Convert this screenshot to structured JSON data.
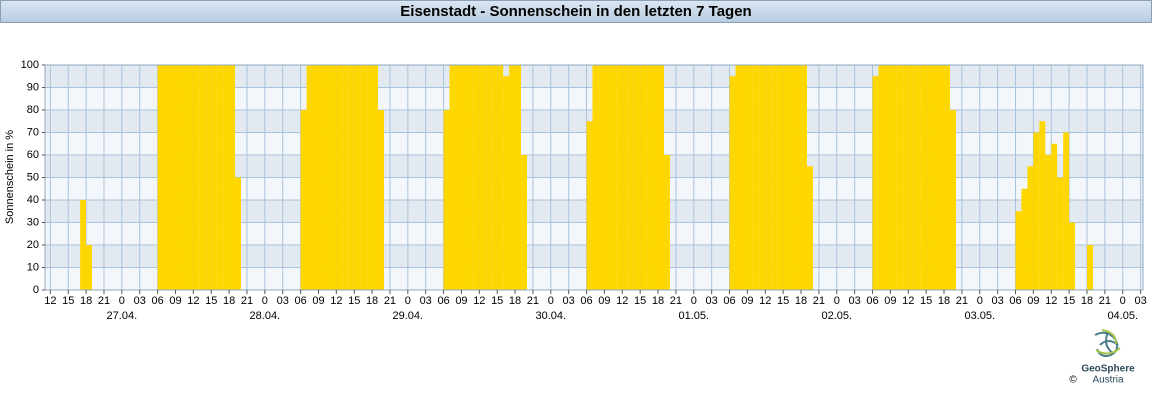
{
  "chart_data": {
    "type": "bar",
    "title": "Eisenstadt - Sonnenschein in den letzten 7 Tagen",
    "ylabel": "Sonnenschein in %",
    "color": "#ffd700",
    "grid": true,
    "ylim": [
      0,
      100
    ],
    "yticks": [
      0,
      10,
      20,
      30,
      40,
      50,
      60,
      70,
      80,
      90,
      100
    ],
    "xlim": [
      11.1,
      195.4
    ],
    "xticks": [
      {
        "value": 12,
        "label": "12"
      },
      {
        "value": 15,
        "label": "15"
      },
      {
        "value": 18,
        "label": "18"
      },
      {
        "value": 21,
        "label": "21"
      },
      {
        "value": 24,
        "label": "0"
      },
      {
        "value": 27,
        "label": "03"
      },
      {
        "value": 30,
        "label": "06"
      },
      {
        "value": 33,
        "label": "09"
      },
      {
        "value": 36,
        "label": "12"
      },
      {
        "value": 39,
        "label": "15"
      },
      {
        "value": 42,
        "label": "18"
      },
      {
        "value": 45,
        "label": "21"
      },
      {
        "value": 48,
        "label": "0"
      },
      {
        "value": 51,
        "label": "03"
      },
      {
        "value": 54,
        "label": "06"
      },
      {
        "value": 57,
        "label": "09"
      },
      {
        "value": 60,
        "label": "12"
      },
      {
        "value": 63,
        "label": "15"
      },
      {
        "value": 66,
        "label": "18"
      },
      {
        "value": 69,
        "label": "21"
      },
      {
        "value": 72,
        "label": "0"
      },
      {
        "value": 75,
        "label": "03"
      },
      {
        "value": 78,
        "label": "06"
      },
      {
        "value": 81,
        "label": "09"
      },
      {
        "value": 84,
        "label": "12"
      },
      {
        "value": 87,
        "label": "15"
      },
      {
        "value": 90,
        "label": "18"
      },
      {
        "value": 93,
        "label": "21"
      },
      {
        "value": 96,
        "label": "0"
      },
      {
        "value": 99,
        "label": "03"
      },
      {
        "value": 102,
        "label": "06"
      },
      {
        "value": 105,
        "label": "09"
      },
      {
        "value": 108,
        "label": "12"
      },
      {
        "value": 111,
        "label": "15"
      },
      {
        "value": 114,
        "label": "18"
      },
      {
        "value": 117,
        "label": "21"
      },
      {
        "value": 120,
        "label": "0"
      },
      {
        "value": 123,
        "label": "03"
      },
      {
        "value": 126,
        "label": "06"
      },
      {
        "value": 129,
        "label": "09"
      },
      {
        "value": 132,
        "label": "12"
      },
      {
        "value": 135,
        "label": "15"
      },
      {
        "value": 138,
        "label": "18"
      },
      {
        "value": 141,
        "label": "21"
      },
      {
        "value": 144,
        "label": "0"
      },
      {
        "value": 147,
        "label": "03"
      },
      {
        "value": 150,
        "label": "06"
      },
      {
        "value": 153,
        "label": "09"
      },
      {
        "value": 156,
        "label": "12"
      },
      {
        "value": 159,
        "label": "15"
      },
      {
        "value": 162,
        "label": "18"
      },
      {
        "value": 165,
        "label": "21"
      },
      {
        "value": 168,
        "label": "0"
      },
      {
        "value": 171,
        "label": "03"
      },
      {
        "value": 174,
        "label": "06"
      },
      {
        "value": 177,
        "label": "09"
      },
      {
        "value": 180,
        "label": "12"
      },
      {
        "value": 183,
        "label": "15"
      },
      {
        "value": 186,
        "label": "18"
      },
      {
        "value": 189,
        "label": "21"
      },
      {
        "value": 192,
        "label": "0"
      },
      {
        "value": 195,
        "label": "03"
      }
    ],
    "xdate_labels": [
      {
        "value": 24,
        "label": "27.04."
      },
      {
        "value": 48,
        "label": "28.04."
      },
      {
        "value": 72,
        "label": "29.04."
      },
      {
        "value": 96,
        "label": "30.04."
      },
      {
        "value": 120,
        "label": "01.05."
      },
      {
        "value": 144,
        "label": "02.05."
      },
      {
        "value": 168,
        "label": "03.05."
      },
      {
        "value": 192,
        "label": "04.05."
      }
    ],
    "x": [
      12,
      13,
      14,
      15,
      16,
      17,
      18,
      19,
      20,
      29,
      30,
      31,
      32,
      33,
      34,
      35,
      36,
      37,
      38,
      39,
      40,
      41,
      42,
      43,
      44,
      53,
      54,
      55,
      56,
      57,
      58,
      59,
      60,
      61,
      62,
      63,
      64,
      65,
      66,
      67,
      68,
      77,
      78,
      79,
      80,
      81,
      82,
      83,
      84,
      85,
      86,
      87,
      88,
      89,
      90,
      91,
      92,
      101,
      102,
      103,
      104,
      105,
      106,
      107,
      108,
      109,
      110,
      111,
      112,
      113,
      114,
      115,
      116,
      125,
      126,
      127,
      128,
      129,
      130,
      131,
      132,
      133,
      134,
      135,
      136,
      137,
      138,
      139,
      140,
      149,
      150,
      151,
      152,
      153,
      154,
      155,
      156,
      157,
      158,
      159,
      160,
      161,
      162,
      163,
      164,
      173,
      174,
      175,
      176,
      177,
      178,
      179,
      180,
      181,
      182,
      183,
      184,
      185,
      186,
      187,
      188
    ],
    "values": [
      0,
      0,
      0,
      0,
      0,
      40,
      20,
      0,
      0,
      0,
      100,
      100,
      100,
      100,
      100,
      100,
      100,
      100,
      100,
      100,
      100,
      100,
      100,
      50,
      0,
      0,
      80,
      100,
      100,
      100,
      100,
      100,
      100,
      100,
      100,
      100,
      100,
      100,
      100,
      80,
      0,
      0,
      80,
      100,
      100,
      100,
      100,
      100,
      100,
      100,
      100,
      100,
      95,
      100,
      100,
      60,
      0,
      0,
      75,
      100,
      100,
      100,
      100,
      100,
      100,
      100,
      100,
      100,
      100,
      100,
      100,
      60,
      0,
      0,
      95,
      100,
      100,
      100,
      100,
      100,
      100,
      100,
      100,
      100,
      100,
      100,
      100,
      55,
      0,
      0,
      95,
      100,
      100,
      100,
      100,
      100,
      100,
      100,
      100,
      100,
      100,
      100,
      100,
      80,
      0,
      0,
      35,
      45,
      55,
      70,
      75,
      60,
      65,
      50,
      70,
      30,
      0,
      0,
      20,
      0,
      0
    ]
  },
  "logo": {
    "name": "GeoSphere",
    "country": "Austria",
    "copyright": "©"
  }
}
